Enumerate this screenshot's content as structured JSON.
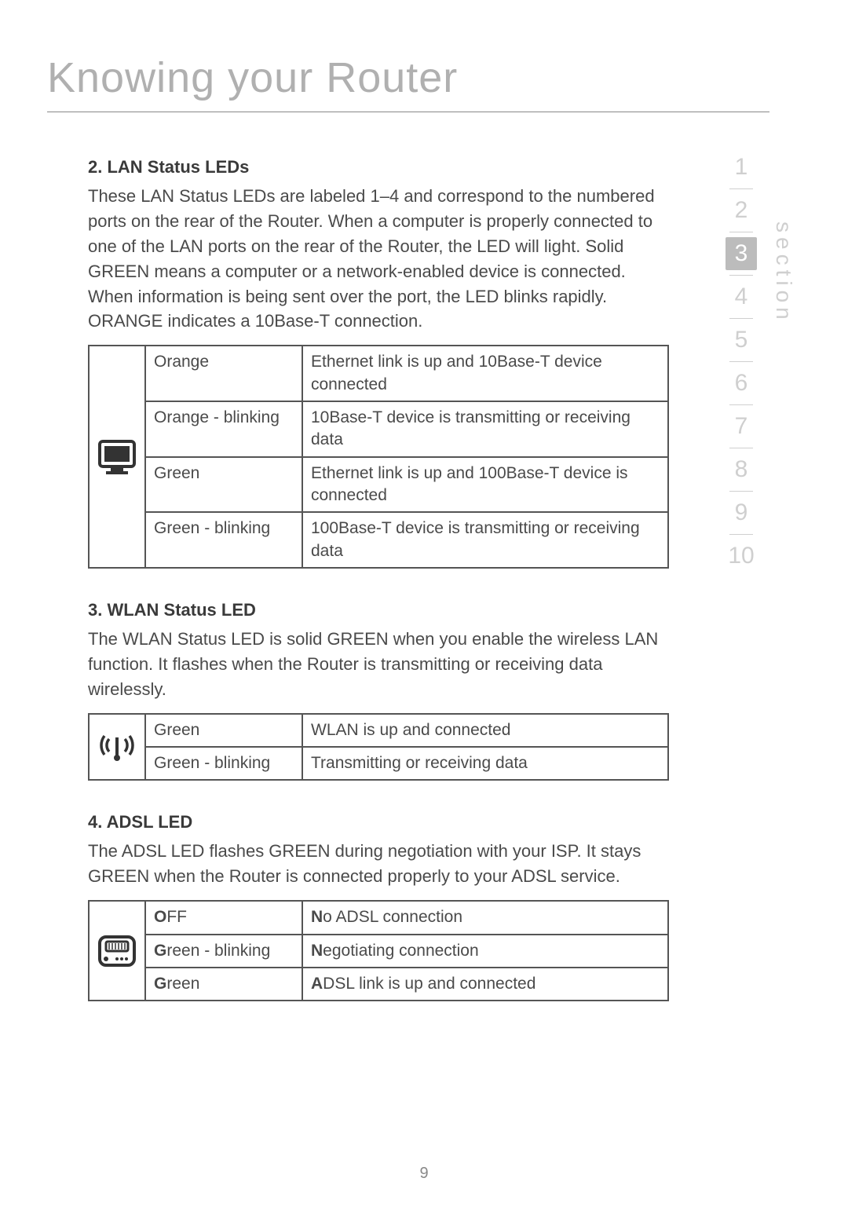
{
  "page": {
    "title": "Knowing your Router",
    "number": "9"
  },
  "nav": {
    "label": "section",
    "items": [
      "1",
      "2",
      "3",
      "4",
      "5",
      "6",
      "7",
      "8",
      "9",
      "10"
    ],
    "active_index": 2
  },
  "sections": {
    "lan": {
      "heading": "2. LAN Status LEDs",
      "body": "These LAN Status LEDs are labeled 1–4 and correspond to the numbered ports on the rear of the Router. When a computer is properly connected to one of the LAN ports on the rear of the Router, the LED will light. Solid GREEN means a computer or a network-enabled device is connected. When information is being sent over the port, the LED blinks rapidly. ORANGE indicates a 10Base-T connection.",
      "icon": "computer-icon",
      "rows": [
        {
          "state": "Orange",
          "desc": "Ethernet link is up and 10Base-T device connected"
        },
        {
          "state": "Orange - blinking",
          "desc": "10Base-T device is transmitting or receiving data"
        },
        {
          "state": "Green",
          "desc": "Ethernet link is up and 100Base-T device is connected"
        },
        {
          "state": "Green - blinking",
          "desc": "100Base-T device is transmitting or receiving data"
        }
      ]
    },
    "wlan": {
      "heading": "3. WLAN Status LED",
      "body": "The WLAN Status LED is solid GREEN when you enable the wireless LAN function. It flashes when the Router is transmitting or receiving data wirelessly.",
      "icon": "wireless-icon",
      "rows": [
        {
          "state": "Green",
          "desc": "WLAN is up and connected"
        },
        {
          "state": "Green - blinking",
          "desc": "Transmitting or receiving data"
        }
      ]
    },
    "adsl": {
      "heading": "4. ADSL LED",
      "body": "The ADSL LED flashes GREEN during negotiation with your ISP. It stays GREEN when the Router is connected properly to your ADSL service.",
      "icon": "modem-icon",
      "rows": [
        {
          "state_first": "O",
          "state_rest": "FF",
          "desc_first": "N",
          "desc_rest": "o ADSL connection"
        },
        {
          "state_first": "G",
          "state_rest": "reen - blinking",
          "desc_first": "N",
          "desc_rest": "egotiating connection"
        },
        {
          "state_first": "G",
          "state_rest": "reen",
          "desc_first": "A",
          "desc_rest": "DSL link is up and connected"
        }
      ]
    }
  },
  "colors": {
    "title": "#b0b0b0",
    "text": "#4a4a4a",
    "border": "#555555",
    "nav_inactive": "#cfcfcf",
    "nav_active_bg": "#bcbcbc",
    "nav_active_fg": "#ffffff"
  }
}
